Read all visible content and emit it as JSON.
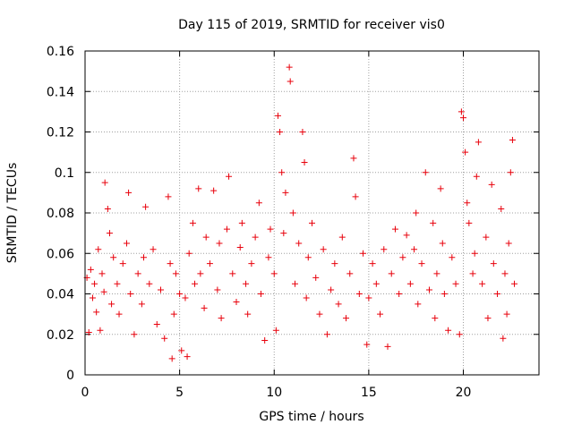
{
  "chart_data": {
    "type": "scatter",
    "title": "Day 115 of 2019, SRMTID for receiver vis0",
    "xlabel": "GPS time / hours",
    "ylabel": "SRMTID / TECUs",
    "xlim": [
      0,
      24
    ],
    "ylim": [
      0,
      0.16
    ],
    "x_ticks": [
      0,
      5,
      10,
      15,
      20
    ],
    "x_tick_labels": [
      "0",
      "5",
      "10",
      "15",
      "20"
    ],
    "y_ticks": [
      0,
      0.02,
      0.04,
      0.06,
      0.08,
      0.1,
      0.12,
      0.14,
      0.16
    ],
    "y_tick_labels": [
      "0",
      "0.02",
      "0.04",
      "0.06",
      "0.08",
      "0.1",
      "0.12",
      "0.14",
      "0.16"
    ],
    "grid": true,
    "marker": "plus",
    "colors": {
      "series": "#e8000b",
      "grid": "#a0a0a0",
      "axis": "#000000"
    },
    "series": [
      {
        "points": [
          [
            0.1,
            0.048
          ],
          [
            0.2,
            0.021
          ],
          [
            0.3,
            0.052
          ],
          [
            0.4,
            0.038
          ],
          [
            0.5,
            0.045
          ],
          [
            0.6,
            0.031
          ],
          [
            0.7,
            0.062
          ],
          [
            0.8,
            0.022
          ],
          [
            0.9,
            0.05
          ],
          [
            1.0,
            0.041
          ],
          [
            1.05,
            0.095
          ],
          [
            1.2,
            0.082
          ],
          [
            1.3,
            0.07
          ],
          [
            1.4,
            0.035
          ],
          [
            1.5,
            0.058
          ],
          [
            1.7,
            0.045
          ],
          [
            1.8,
            0.03
          ],
          [
            2.0,
            0.055
          ],
          [
            2.2,
            0.065
          ],
          [
            2.3,
            0.09
          ],
          [
            2.4,
            0.04
          ],
          [
            2.6,
            0.02
          ],
          [
            2.8,
            0.05
          ],
          [
            3.0,
            0.035
          ],
          [
            3.1,
            0.058
          ],
          [
            3.2,
            0.083
          ],
          [
            3.4,
            0.045
          ],
          [
            3.6,
            0.062
          ],
          [
            3.8,
            0.025
          ],
          [
            4.0,
            0.042
          ],
          [
            4.2,
            0.018
          ],
          [
            4.4,
            0.088
          ],
          [
            4.5,
            0.055
          ],
          [
            4.6,
            0.008
          ],
          [
            4.7,
            0.03
          ],
          [
            4.8,
            0.05
          ],
          [
            5.0,
            0.04
          ],
          [
            5.1,
            0.012
          ],
          [
            5.3,
            0.038
          ],
          [
            5.4,
            0.009
          ],
          [
            5.5,
            0.06
          ],
          [
            5.7,
            0.075
          ],
          [
            5.8,
            0.045
          ],
          [
            6.0,
            0.092
          ],
          [
            6.1,
            0.05
          ],
          [
            6.3,
            0.033
          ],
          [
            6.4,
            0.068
          ],
          [
            6.6,
            0.055
          ],
          [
            6.8,
            0.091
          ],
          [
            7.0,
            0.042
          ],
          [
            7.1,
            0.065
          ],
          [
            7.2,
            0.028
          ],
          [
            7.5,
            0.072
          ],
          [
            7.6,
            0.098
          ],
          [
            7.8,
            0.05
          ],
          [
            8.0,
            0.036
          ],
          [
            8.2,
            0.063
          ],
          [
            8.3,
            0.075
          ],
          [
            8.5,
            0.045
          ],
          [
            8.6,
            0.03
          ],
          [
            8.8,
            0.055
          ],
          [
            9.0,
            0.068
          ],
          [
            9.2,
            0.085
          ],
          [
            9.3,
            0.04
          ],
          [
            9.5,
            0.017
          ],
          [
            9.7,
            0.058
          ],
          [
            9.8,
            0.072
          ],
          [
            10.0,
            0.05
          ],
          [
            10.1,
            0.022
          ],
          [
            10.2,
            0.128
          ],
          [
            10.3,
            0.12
          ],
          [
            10.4,
            0.1
          ],
          [
            10.5,
            0.07
          ],
          [
            10.6,
            0.09
          ],
          [
            10.8,
            0.152
          ],
          [
            10.85,
            0.145
          ],
          [
            11.0,
            0.08
          ],
          [
            11.1,
            0.045
          ],
          [
            11.3,
            0.065
          ],
          [
            11.5,
            0.12
          ],
          [
            11.6,
            0.105
          ],
          [
            11.7,
            0.038
          ],
          [
            11.8,
            0.058
          ],
          [
            12.0,
            0.075
          ],
          [
            12.2,
            0.048
          ],
          [
            12.4,
            0.03
          ],
          [
            12.6,
            0.062
          ],
          [
            12.8,
            0.02
          ],
          [
            13.0,
            0.042
          ],
          [
            13.2,
            0.055
          ],
          [
            13.4,
            0.035
          ],
          [
            13.6,
            0.068
          ],
          [
            13.8,
            0.028
          ],
          [
            14.0,
            0.05
          ],
          [
            14.2,
            0.107
          ],
          [
            14.3,
            0.088
          ],
          [
            14.5,
            0.04
          ],
          [
            14.7,
            0.06
          ],
          [
            14.9,
            0.015
          ],
          [
            15.0,
            0.038
          ],
          [
            15.2,
            0.055
          ],
          [
            15.4,
            0.045
          ],
          [
            15.6,
            0.03
          ],
          [
            15.8,
            0.062
          ],
          [
            16.0,
            0.014
          ],
          [
            16.2,
            0.05
          ],
          [
            16.4,
            0.072
          ],
          [
            16.6,
            0.04
          ],
          [
            16.8,
            0.058
          ],
          [
            17.0,
            0.069
          ],
          [
            17.2,
            0.045
          ],
          [
            17.4,
            0.062
          ],
          [
            17.5,
            0.08
          ],
          [
            17.6,
            0.035
          ],
          [
            17.8,
            0.055
          ],
          [
            18.0,
            0.1
          ],
          [
            18.2,
            0.042
          ],
          [
            18.4,
            0.075
          ],
          [
            18.5,
            0.028
          ],
          [
            18.6,
            0.05
          ],
          [
            18.8,
            0.092
          ],
          [
            18.9,
            0.065
          ],
          [
            19.0,
            0.04
          ],
          [
            19.2,
            0.022
          ],
          [
            19.4,
            0.058
          ],
          [
            19.6,
            0.045
          ],
          [
            19.8,
            0.02
          ],
          [
            19.9,
            0.13
          ],
          [
            20.0,
            0.127
          ],
          [
            20.1,
            0.11
          ],
          [
            20.2,
            0.085
          ],
          [
            20.3,
            0.075
          ],
          [
            20.5,
            0.05
          ],
          [
            20.6,
            0.06
          ],
          [
            20.7,
            0.098
          ],
          [
            20.8,
            0.115
          ],
          [
            21.0,
            0.045
          ],
          [
            21.2,
            0.068
          ],
          [
            21.3,
            0.028
          ],
          [
            21.5,
            0.094
          ],
          [
            21.6,
            0.055
          ],
          [
            21.8,
            0.04
          ],
          [
            22.0,
            0.082
          ],
          [
            22.1,
            0.018
          ],
          [
            22.2,
            0.05
          ],
          [
            22.3,
            0.03
          ],
          [
            22.4,
            0.065
          ],
          [
            22.5,
            0.1
          ],
          [
            22.6,
            0.116
          ],
          [
            22.7,
            0.045
          ]
        ]
      }
    ]
  }
}
